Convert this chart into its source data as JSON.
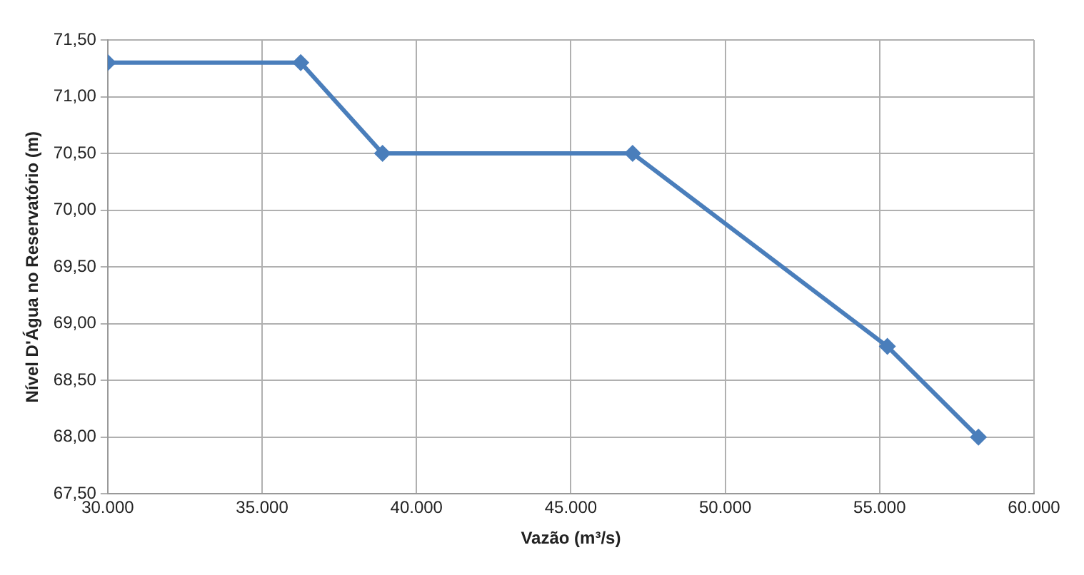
{
  "chart_data": {
    "type": "line",
    "xlabel": "Vazão (m³/s)",
    "ylabel": "Nível D'Água no Reservatório (m)",
    "x": [
      30000,
      36250,
      38900,
      47000,
      55250,
      58200
    ],
    "series": [
      {
        "color": "#4a7ebb",
        "values": [
          71.3,
          71.3,
          70.5,
          70.5,
          68.8,
          68.0
        ]
      }
    ],
    "xlim": [
      30000,
      60000
    ],
    "xticks": [
      {
        "value": 30000,
        "label": "30.000"
      },
      {
        "value": 35000,
        "label": "35.000"
      },
      {
        "value": 40000,
        "label": "40.000"
      },
      {
        "value": 45000,
        "label": "45.000"
      },
      {
        "value": 50000,
        "label": "50.000"
      },
      {
        "value": 55000,
        "label": "55.000"
      },
      {
        "value": 60000,
        "label": "60.000"
      }
    ],
    "ylim": [
      67.5,
      71.5
    ],
    "yticks": [
      {
        "value": 67.5,
        "label": "67,50"
      },
      {
        "value": 68,
        "label": "68,00"
      },
      {
        "value": 68.5,
        "label": "68,50"
      },
      {
        "value": 69,
        "label": "69,00"
      },
      {
        "value": 69.5,
        "label": "69,50"
      },
      {
        "value": 70,
        "label": "70,00"
      },
      {
        "value": 70.5,
        "label": "70,50"
      },
      {
        "value": 71,
        "label": "71,00"
      },
      {
        "value": 71.5,
        "label": "71,50"
      }
    ],
    "grid": true,
    "legend": false,
    "marker": "diamond",
    "line_style": "solid"
  }
}
